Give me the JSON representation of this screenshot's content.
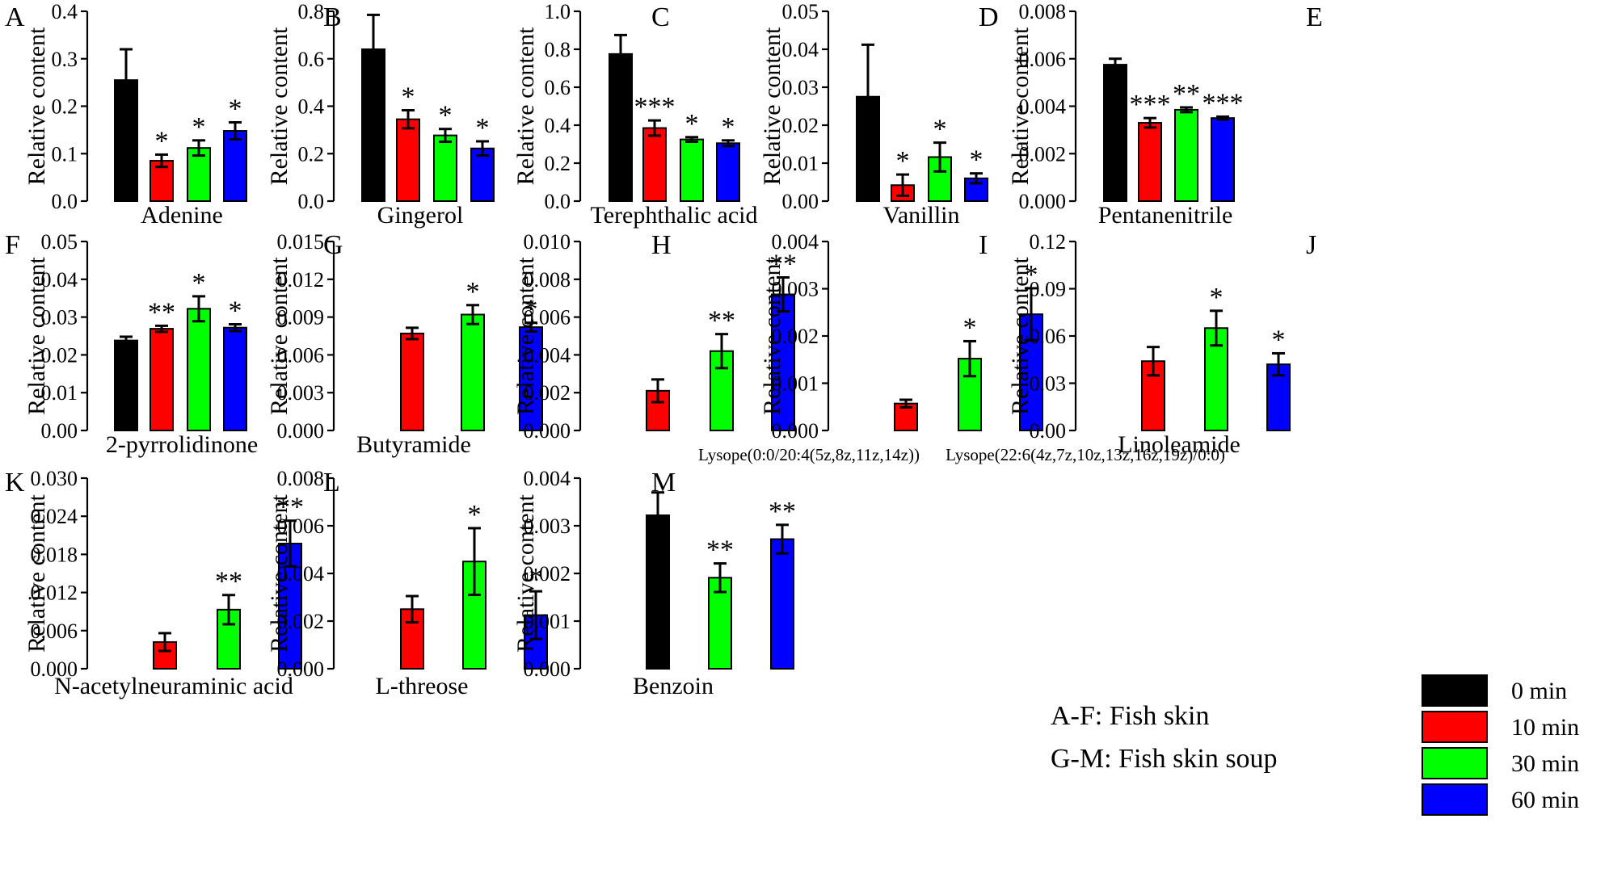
{
  "figure_notes": [
    "A-F: Fish skin",
    "G-M: Fish skin soup"
  ],
  "legend": [
    {
      "label": "0 min",
      "color": "#000000"
    },
    {
      "label": "10 min",
      "color": "#ff0000"
    },
    {
      "label": "30 min",
      "color": "#00ff00"
    },
    {
      "label": "60 min",
      "color": "#0000ff"
    }
  ],
  "chart_data": [
    {
      "letter": "A",
      "type": "bar",
      "title": "Adenine",
      "xlabel": "Adenine",
      "ylabel": "Relative content",
      "ylim": [
        0,
        0.4
      ],
      "yticks": [
        "0.0",
        "0.1",
        "0.2",
        "0.3",
        "0.4"
      ],
      "series": [
        {
          "name": "0 min",
          "value": 0.255,
          "error": 0.065,
          "sig": ""
        },
        {
          "name": "10 min",
          "value": 0.085,
          "error": 0.013,
          "sig": "*"
        },
        {
          "name": "30 min",
          "value": 0.112,
          "error": 0.016,
          "sig": "*"
        },
        {
          "name": "60 min",
          "value": 0.148,
          "error": 0.018,
          "sig": "*"
        }
      ]
    },
    {
      "letter": "B",
      "type": "bar",
      "title": "Gingerol",
      "xlabel": "Gingerol",
      "ylabel": "Relative content",
      "ylim": [
        0,
        0.8
      ],
      "yticks": [
        "0.0",
        "0.2",
        "0.4",
        "0.6",
        "0.8"
      ],
      "series": [
        {
          "name": "0 min",
          "value": 0.64,
          "error": 0.145,
          "sig": ""
        },
        {
          "name": "10 min",
          "value": 0.345,
          "error": 0.038,
          "sig": "*"
        },
        {
          "name": "30 min",
          "value": 0.277,
          "error": 0.027,
          "sig": "*"
        },
        {
          "name": "60 min",
          "value": 0.222,
          "error": 0.03,
          "sig": "*"
        }
      ]
    },
    {
      "letter": "C",
      "type": "bar",
      "title": "Terephthalic acid",
      "xlabel": "Terephthalic acid",
      "ylabel": "Relative content",
      "ylim": [
        0,
        1.0
      ],
      "yticks": [
        "0.0",
        "0.2",
        "0.4",
        "0.6",
        "0.8",
        "1.0"
      ],
      "series": [
        {
          "name": "0 min",
          "value": 0.775,
          "error": 0.1,
          "sig": ""
        },
        {
          "name": "10 min",
          "value": 0.385,
          "error": 0.04,
          "sig": "***"
        },
        {
          "name": "30 min",
          "value": 0.325,
          "error": 0.012,
          "sig": "*"
        },
        {
          "name": "60 min",
          "value": 0.305,
          "error": 0.015,
          "sig": "*"
        }
      ]
    },
    {
      "letter": "D",
      "type": "bar",
      "title": "Vanillin",
      "xlabel": "Vanillin",
      "ylabel": "Relative content",
      "ylim": [
        0,
        0.05
      ],
      "yticks": [
        "0.00",
        "0.01",
        "0.02",
        "0.03",
        "0.04",
        "0.05"
      ],
      "series": [
        {
          "name": "0 min",
          "value": 0.0275,
          "error": 0.0137,
          "sig": ""
        },
        {
          "name": "10 min",
          "value": 0.0042,
          "error": 0.0028,
          "sig": "*"
        },
        {
          "name": "30 min",
          "value": 0.0116,
          "error": 0.0038,
          "sig": "*"
        },
        {
          "name": "60 min",
          "value": 0.006,
          "error": 0.0013,
          "sig": "*"
        }
      ]
    },
    {
      "letter": "E",
      "type": "bar",
      "title": "Pentanenitrile",
      "xlabel": "Pentanenitrile",
      "ylabel": "Relative content",
      "ylim": [
        0,
        0.008
      ],
      "yticks": [
        "0.000",
        "0.002",
        "0.004",
        "0.006",
        "0.008"
      ],
      "series": [
        {
          "name": "0 min",
          "value": 0.00575,
          "error": 0.00025,
          "sig": ""
        },
        {
          "name": "10 min",
          "value": 0.0033,
          "error": 0.0002,
          "sig": "***"
        },
        {
          "name": "30 min",
          "value": 0.00385,
          "error": 0.0001,
          "sig": "**"
        },
        {
          "name": "60 min",
          "value": 0.0035,
          "error": 6e-05,
          "sig": "***"
        }
      ]
    },
    {
      "letter": "F",
      "type": "bar",
      "title": "2-pyrrolidinone",
      "xlabel": "2-pyrrolidinone",
      "ylabel": "Relative content",
      "ylim": [
        0,
        0.05
      ],
      "yticks": [
        "0.00",
        "0.01",
        "0.02",
        "0.03",
        "0.04",
        "0.05"
      ],
      "series": [
        {
          "name": "0 min",
          "value": 0.0238,
          "error": 0.001,
          "sig": ""
        },
        {
          "name": "10 min",
          "value": 0.0269,
          "error": 0.0008,
          "sig": "**"
        },
        {
          "name": "30 min",
          "value": 0.0322,
          "error": 0.0033,
          "sig": "*"
        },
        {
          "name": "60 min",
          "value": 0.0272,
          "error": 0.0009,
          "sig": "*"
        }
      ]
    },
    {
      "letter": "G",
      "type": "bar",
      "title": "Butyramide",
      "xlabel": "Butyramide",
      "ylabel": "Relative content",
      "ylim": [
        0,
        0.015
      ],
      "yticks": [
        "0.000",
        "0.003",
        "0.006",
        "0.009",
        "0.012",
        "0.015"
      ],
      "series": [
        {
          "name": "10 min",
          "value": 0.0077,
          "error": 0.00045,
          "sig": ""
        },
        {
          "name": "30 min",
          "value": 0.0092,
          "error": 0.00075,
          "sig": "*"
        },
        {
          "name": "60 min",
          "value": 0.0082,
          "error": 0.00035,
          "sig": "*"
        }
      ]
    },
    {
      "letter": "H",
      "type": "bar",
      "title": "Lysope(0:0/20:4(5z,8z,11z,14z))",
      "xlabel": "Lysope(0:0/20:4(5z,8z,11z,14z))",
      "ylabel": "Relative content",
      "ylim": [
        0,
        0.01
      ],
      "yticks": [
        "0.000",
        "0.002",
        "0.004",
        "0.006",
        "0.008",
        "0.010"
      ],
      "series": [
        {
          "name": "10 min",
          "value": 0.0021,
          "error": 0.0006,
          "sig": ""
        },
        {
          "name": "30 min",
          "value": 0.0042,
          "error": 0.0009,
          "sig": "**"
        },
        {
          "name": "60 min",
          "value": 0.0072,
          "error": 0.0009,
          "sig": "**"
        }
      ]
    },
    {
      "letter": "I",
      "type": "bar",
      "title": "Lysope(22:6(4z,7z,10z,13z,16z,19z)/0:0)",
      "xlabel": "Lysope(22:6(4z,7z,10z,13z,16z,19z)/0:0)",
      "ylabel": "Relative content",
      "ylim": [
        0,
        0.004
      ],
      "yticks": [
        "0.000",
        "0.001",
        "0.002",
        "0.003",
        "0.004"
      ],
      "series": [
        {
          "name": "10 min",
          "value": 0.00057,
          "error": 8e-05,
          "sig": ""
        },
        {
          "name": "30 min",
          "value": 0.00152,
          "error": 0.00037,
          "sig": "*"
        },
        {
          "name": "60 min",
          "value": 0.00246,
          "error": 0.00055,
          "sig": "*"
        }
      ]
    },
    {
      "letter": "J",
      "type": "bar",
      "title": "Linoleamide",
      "xlabel": "Linoleamide",
      "ylabel": "Relative content",
      "ylim": [
        0,
        0.12
      ],
      "yticks": [
        "0.00",
        "0.03",
        "0.06",
        "0.09",
        "0.12"
      ],
      "series": [
        {
          "name": "10 min",
          "value": 0.044,
          "error": 0.009,
          "sig": ""
        },
        {
          "name": "30 min",
          "value": 0.065,
          "error": 0.011,
          "sig": "*"
        },
        {
          "name": "60 min",
          "value": 0.042,
          "error": 0.007,
          "sig": "*"
        }
      ]
    },
    {
      "letter": "K",
      "type": "bar",
      "title": "N-acetylneuraminic acid",
      "xlabel": "N-acetylneuraminic acid",
      "ylabel": "Relative content",
      "ylim": [
        0,
        0.03
      ],
      "yticks": [
        "0.000",
        "0.006",
        "0.012",
        "0.018",
        "0.024",
        "0.030"
      ],
      "series": [
        {
          "name": "10 min",
          "value": 0.0042,
          "error": 0.0014,
          "sig": ""
        },
        {
          "name": "30 min",
          "value": 0.0093,
          "error": 0.0023,
          "sig": "**"
        },
        {
          "name": "60 min",
          "value": 0.0197,
          "error": 0.0036,
          "sig": "**"
        }
      ]
    },
    {
      "letter": "L",
      "type": "bar",
      "title": "L-threose",
      "xlabel": "L-threose",
      "ylabel": "Relative content",
      "ylim": [
        0,
        0.008
      ],
      "yticks": [
        "0.000",
        "0.002",
        "0.004",
        "0.006",
        "0.008"
      ],
      "series": [
        {
          "name": "10 min",
          "value": 0.0025,
          "error": 0.00055,
          "sig": ""
        },
        {
          "name": "30 min",
          "value": 0.0045,
          "error": 0.0014,
          "sig": "*"
        },
        {
          "name": "60 min",
          "value": 0.00225,
          "error": 0.001,
          "sig": "*"
        }
      ]
    },
    {
      "letter": "M",
      "type": "bar",
      "title": "Benzoin",
      "xlabel": "Benzoin",
      "ylabel": "Relative content",
      "ylim": [
        0,
        0.004
      ],
      "yticks": [
        "0.000",
        "0.001",
        "0.002",
        "0.003",
        "0.004"
      ],
      "series": [
        {
          "name": "0 min",
          "value": 0.00322,
          "error": 0.00048,
          "sig": ""
        },
        {
          "name": "30 min",
          "value": 0.00191,
          "error": 0.0003,
          "sig": "**"
        },
        {
          "name": "60 min",
          "value": 0.00272,
          "error": 0.0003,
          "sig": "**"
        }
      ]
    }
  ]
}
